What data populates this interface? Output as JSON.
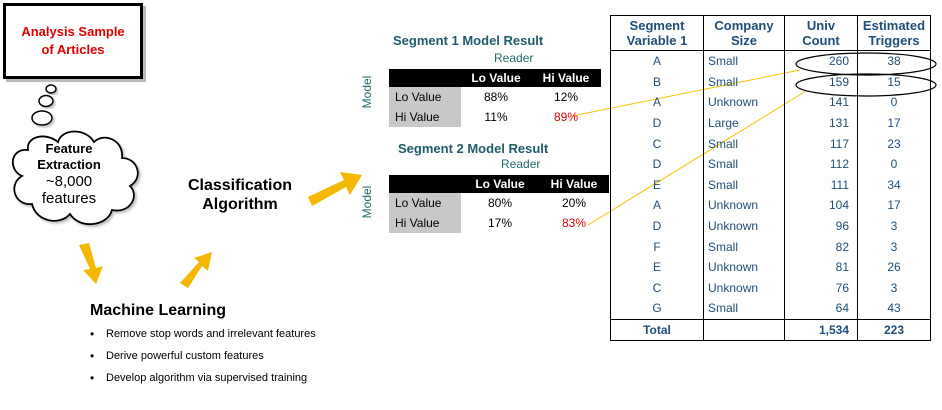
{
  "sample_box": {
    "line1": "Analysis Sample",
    "line2": "of Articles"
  },
  "cloud": {
    "line1": "Feature",
    "line2": "Extraction",
    "line3": "~8,000",
    "line4": "features"
  },
  "classification": {
    "line1": "Classification",
    "line2": "Algorithm"
  },
  "machine_learning": {
    "title": "Machine Learning",
    "bullets": [
      "Remove stop words and irrelevant features",
      "Derive powerful custom features",
      "Develop algorithm via supervised training"
    ]
  },
  "segment1": {
    "title": "Segment 1 Model Result",
    "reader_label": "Reader",
    "model_label": "Model",
    "col_lo": "Lo Value",
    "col_hi": "Hi Value",
    "rows": [
      {
        "label": "Lo Value",
        "lo": "88%",
        "hi": "12%"
      },
      {
        "label": "Hi Value",
        "lo": "11%",
        "hi": "89%"
      }
    ]
  },
  "segment2": {
    "title": "Segment 2 Model Result",
    "reader_label": "Reader",
    "model_label": "Model",
    "col_lo": "Lo Value",
    "col_hi": "Hi Value",
    "rows": [
      {
        "label": "Lo Value",
        "lo": "80%",
        "hi": "20%"
      },
      {
        "label": "Hi Value",
        "lo": "17%",
        "hi": "83%"
      }
    ]
  },
  "main_table": {
    "headers": {
      "seg_l1": "Segment",
      "seg_l2": "Variable 1",
      "size_l1": "Company",
      "size_l2": "Size",
      "univ_l1": "Univ",
      "univ_l2": "Count",
      "trig_l1": "Estimated",
      "trig_l2": "Triggers"
    },
    "rows": [
      {
        "seg": "A",
        "size": "Small",
        "univ": "260",
        "trig": "38"
      },
      {
        "seg": "B",
        "size": "Small",
        "univ": "159",
        "trig": "15"
      },
      {
        "seg": "A",
        "size": "Unknown",
        "univ": "141",
        "trig": "0"
      },
      {
        "seg": "D",
        "size": "Large",
        "univ": "131",
        "trig": "17"
      },
      {
        "seg": "C",
        "size": "Small",
        "univ": "117",
        "trig": "23"
      },
      {
        "seg": "D",
        "size": "Small",
        "univ": "112",
        "trig": "0"
      },
      {
        "seg": "E",
        "size": "Small",
        "univ": "111",
        "trig": "34"
      },
      {
        "seg": "A",
        "size": "Unknown",
        "univ": "104",
        "trig": "17"
      },
      {
        "seg": "D",
        "size": "Unknown",
        "univ": "96",
        "trig": "3"
      },
      {
        "seg": "F",
        "size": "Small",
        "univ": "82",
        "trig": "3"
      },
      {
        "seg": "E",
        "size": "Unknown",
        "univ": "81",
        "trig": "26"
      },
      {
        "seg": "C",
        "size": "Unknown",
        "univ": "76",
        "trig": "3"
      },
      {
        "seg": "G",
        "size": "Small",
        "univ": "64",
        "trig": "43"
      }
    ],
    "total": {
      "label": "Total",
      "univ": "1,534",
      "trig": "223"
    }
  },
  "colors": {
    "arrow": "#f5b800",
    "connector": "#f5c400",
    "highlight_red": "#e00000",
    "teal_text": "#1f5c6b",
    "table_text": "#1f4e79"
  }
}
